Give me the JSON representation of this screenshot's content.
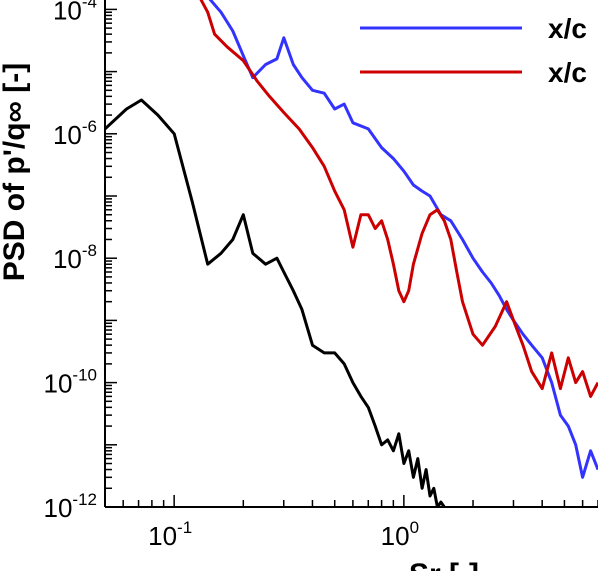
{
  "chart_data": {
    "type": "line",
    "title": "",
    "xlabel": "Sr [-]",
    "ylabel": "PSD of p'/q∞ [-]",
    "x_scale": "log",
    "y_scale": "log",
    "xlim": [
      0.05,
      7
    ],
    "ylim": [
      1e-12,
      0.0002
    ],
    "grid": false,
    "legend_position": "top-right",
    "x_ticks": [
      {
        "value": 0.1,
        "base": "10",
        "exp": "-1"
      },
      {
        "value": 1,
        "base": "10",
        "exp": "0"
      }
    ],
    "y_ticks": [
      {
        "value": 0.0001,
        "base": "10",
        "exp": "-4"
      },
      {
        "value": 1e-06,
        "base": "10",
        "exp": "-6"
      },
      {
        "value": 1e-08,
        "base": "10",
        "exp": "-8"
      },
      {
        "value": 1e-10,
        "base": "10",
        "exp": "-10"
      },
      {
        "value": 1e-12,
        "base": "10",
        "exp": "-12"
      }
    ],
    "series": [
      {
        "name": "x/c",
        "color": "#3333ff",
        "x": [
          0.14,
          0.16,
          0.18,
          0.2,
          0.22,
          0.25,
          0.28,
          0.3,
          0.33,
          0.36,
          0.4,
          0.45,
          0.5,
          0.55,
          0.6,
          0.7,
          0.8,
          0.9,
          1.0,
          1.1,
          1.2,
          1.3,
          1.45,
          1.6,
          1.8,
          2.0,
          2.2,
          2.4,
          2.6,
          2.8,
          3.0,
          3.3,
          3.6,
          4.0,
          4.4,
          4.8,
          5.2,
          5.6,
          6.0,
          6.5,
          7.0
        ],
        "y": [
          0.00016,
          9e-05,
          4.5e-05,
          1.8e-05,
          8e-06,
          1.3e-05,
          1.6e-05,
          3.5e-05,
          1.3e-05,
          8e-06,
          5e-06,
          4.5e-06,
          2.5e-06,
          3e-06,
          1.5e-06,
          1.2e-06,
          6e-07,
          4e-07,
          2.5e-07,
          1.5e-07,
          1.2e-07,
          1e-07,
          5e-08,
          4e-08,
          2e-08,
          1e-08,
          6e-09,
          4e-09,
          2.5e-09,
          1.5e-09,
          1e-09,
          6e-10,
          4e-10,
          2.5e-10,
          1e-10,
          3e-11,
          2e-11,
          1e-11,
          3e-12,
          8e-12,
          4e-12
        ]
      },
      {
        "name": "x/c",
        "color": "#cc0000",
        "x": [
          0.12,
          0.13,
          0.14,
          0.15,
          0.17,
          0.2,
          0.23,
          0.26,
          0.3,
          0.35,
          0.4,
          0.45,
          0.5,
          0.55,
          0.6,
          0.65,
          0.7,
          0.75,
          0.8,
          0.85,
          0.9,
          0.95,
          1.0,
          1.05,
          1.1,
          1.2,
          1.3,
          1.4,
          1.5,
          1.6,
          1.7,
          1.8,
          2.0,
          2.2,
          2.5,
          2.8,
          3.0,
          3.3,
          3.6,
          4.0,
          4.4,
          4.8,
          5.2,
          5.6,
          6.0,
          6.5,
          7.0
        ],
        "y": [
          0.00022,
          0.00015,
          9e-05,
          4e-05,
          2.5e-05,
          1.5e-05,
          7e-06,
          4e-06,
          2.2e-06,
          1.2e-06,
          6e-07,
          3e-07,
          1.2e-07,
          6e-08,
          1.5e-08,
          5e-08,
          5e-08,
          3e-08,
          4e-08,
          2e-08,
          8e-09,
          3e-09,
          2e-09,
          3e-09,
          8e-09,
          2.5e-08,
          5e-08,
          6e-08,
          4e-08,
          2e-08,
          6e-09,
          2e-09,
          6e-10,
          4e-10,
          8e-10,
          2e-09,
          1e-09,
          4e-10,
          1.5e-10,
          8e-11,
          3e-10,
          8e-11,
          2.5e-10,
          1e-10,
          1.5e-10,
          6e-11,
          1e-10
        ]
      },
      {
        "name": "",
        "color": "#000000",
        "x": [
          0.05,
          0.062,
          0.072,
          0.085,
          0.1,
          0.12,
          0.14,
          0.16,
          0.18,
          0.2,
          0.22,
          0.25,
          0.28,
          0.3,
          0.33,
          0.36,
          0.4,
          0.45,
          0.5,
          0.55,
          0.6,
          0.65,
          0.7,
          0.75,
          0.8,
          0.85,
          0.9,
          0.95,
          1.0,
          1.05,
          1.1,
          1.15,
          1.2,
          1.25,
          1.3,
          1.35,
          1.4,
          1.45,
          1.5
        ],
        "y": [
          1.2e-06,
          2.5e-06,
          3.5e-06,
          2e-06,
          1e-06,
          8e-08,
          8e-09,
          1.2e-08,
          2e-08,
          5e-08,
          1.2e-08,
          8e-09,
          1e-08,
          6e-09,
          3e-09,
          1.5e-09,
          4e-10,
          3e-10,
          3e-10,
          2e-10,
          1e-10,
          6e-11,
          4e-11,
          2e-11,
          1e-11,
          1.2e-11,
          8e-12,
          1.5e-11,
          5e-12,
          8e-12,
          3e-12,
          6e-12,
          2e-12,
          4e-12,
          1.5e-12,
          2e-12,
          1e-12,
          1.2e-12,
          1e-12
        ]
      }
    ]
  }
}
